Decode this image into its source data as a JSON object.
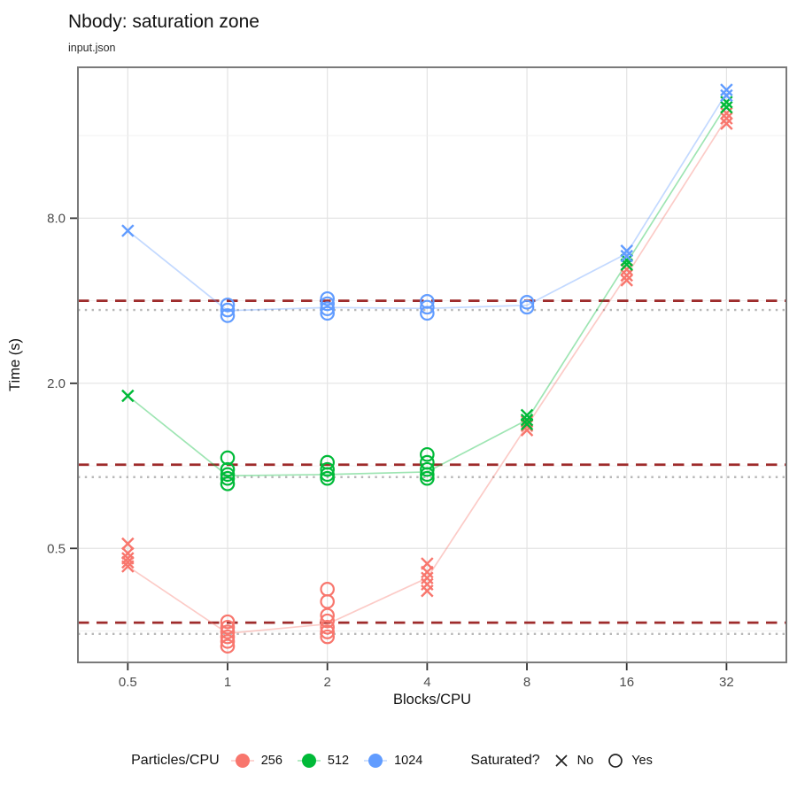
{
  "title": "Nbody: saturation zone",
  "subtitle": "input.json",
  "colors": {
    "accent_red": "#F8766D",
    "accent_green": "#00BA38",
    "accent_blue": "#619CFF",
    "dashed_ref": "#9E2B2B",
    "dotted_ref": "#B8B8B8",
    "grid_major": "#E3E3E3",
    "grid_minor": "#F0F0F0",
    "panel_border": "#7a7a7a",
    "axis_text": "#4D4D4D",
    "tick_mark": "#333333"
  },
  "chart_data": {
    "type": "scatter",
    "title": "Nbody: saturation zone",
    "subtitle": "input.json",
    "xlabel": "Blocks/CPU",
    "ylabel": "Time (s)",
    "x_scale": "log2",
    "y_scale": "log2",
    "grid": true,
    "x_ticks": [
      0.5,
      1,
      2,
      4,
      8,
      16,
      32
    ],
    "x_tick_labels": [
      "0.5",
      "1",
      "2",
      "4",
      "8",
      "16",
      "32"
    ],
    "y_ticks": [
      0.5,
      2.0,
      8.0
    ],
    "y_tick_labels": [
      "0.5",
      "2.0",
      "8.0"
    ],
    "y_minor_gridlines": [
      0.25,
      1.0,
      4.0,
      16.0
    ],
    "x_range": [
      0.3536,
      48.5
    ],
    "y_range": [
      0.192,
      28.4
    ],
    "legend_position": "bottom",
    "series": [
      {
        "name": "256",
        "particles_per_cpu": 256,
        "color": "#F8766D",
        "dashed_ref": 0.268,
        "dotted_ref": 0.244,
        "line": [
          0.43,
          0.245,
          0.265,
          0.39,
          1.4,
          4.95,
          18.5
        ],
        "points": [
          {
            "x": 0.5,
            "times": [
              0.52,
              0.48,
              0.46,
              0.445,
              0.43
            ],
            "saturated": false
          },
          {
            "x": 1,
            "times": [
              0.27,
              0.258,
              0.248,
              0.238,
              0.229,
              0.22
            ],
            "saturated": true
          },
          {
            "x": 2,
            "times": [
              0.355,
              0.32,
              0.285,
              0.272,
              0.258,
              0.248,
              0.238
            ],
            "saturated": true
          },
          {
            "x": 4,
            "times": [
              0.44,
              0.41,
              0.39,
              0.37,
              0.35
            ],
            "saturated": false
          },
          {
            "x": 8,
            "times": [
              1.45,
              1.4,
              1.35
            ],
            "saturated": false
          },
          {
            "x": 16,
            "times": [
              5.2,
              4.95,
              4.75
            ],
            "saturated": false
          },
          {
            "x": 32,
            "times": [
              19.3,
              18.5,
              17.7
            ],
            "saturated": false
          }
        ]
      },
      {
        "name": "512",
        "particles_per_cpu": 512,
        "color": "#00BA38",
        "dashed_ref": 1.01,
        "dotted_ref": 0.91,
        "line": [
          1.8,
          0.92,
          0.93,
          0.95,
          1.47,
          5.5,
          20.7
        ],
        "points": [
          {
            "x": 0.5,
            "times": [
              1.8
            ],
            "saturated": false
          },
          {
            "x": 1,
            "times": [
              1.07,
              0.97,
              0.93,
              0.9,
              0.86
            ],
            "saturated": true
          },
          {
            "x": 2,
            "times": [
              1.03,
              0.97,
              0.93,
              0.9
            ],
            "saturated": true
          },
          {
            "x": 4,
            "times": [
              1.1,
              1.03,
              0.97,
              0.93,
              0.9
            ],
            "saturated": true
          },
          {
            "x": 8,
            "times": [
              1.53,
              1.47,
              1.42
            ],
            "saturated": false
          },
          {
            "x": 16,
            "times": [
              5.62,
              5.42
            ],
            "saturated": false
          },
          {
            "x": 32,
            "times": [
              21.2,
              20.3
            ],
            "saturated": false
          }
        ]
      },
      {
        "name": "1024",
        "particles_per_cpu": 1024,
        "color": "#619CFF",
        "dashed_ref": 4.0,
        "dotted_ref": 3.7,
        "line": [
          7.2,
          3.68,
          3.78,
          3.75,
          3.85,
          5.95,
          22.9
        ],
        "points": [
          {
            "x": 0.5,
            "times": [
              7.2
            ],
            "saturated": false
          },
          {
            "x": 1,
            "times": [
              3.86,
              3.7,
              3.53
            ],
            "saturated": true
          },
          {
            "x": 2,
            "times": [
              4.07,
              3.9,
              3.74,
              3.6
            ],
            "saturated": true
          },
          {
            "x": 4,
            "times": [
              3.98,
              3.79,
              3.6
            ],
            "saturated": true
          },
          {
            "x": 8,
            "times": [
              3.95,
              3.79
            ],
            "saturated": true
          },
          {
            "x": 16,
            "times": [
              6.08,
              5.82
            ],
            "saturated": false
          },
          {
            "x": 32,
            "times": [
              23.5,
              22.4
            ],
            "saturated": false
          }
        ]
      }
    ]
  },
  "legend_particles": {
    "title": "Particles/CPU",
    "items": [
      {
        "label": "256"
      },
      {
        "label": "512"
      },
      {
        "label": "1024"
      }
    ]
  },
  "legend_saturated": {
    "title": "Saturated?",
    "items": [
      {
        "shape": "x",
        "label": "No"
      },
      {
        "shape": "circle",
        "label": "Yes"
      }
    ]
  }
}
